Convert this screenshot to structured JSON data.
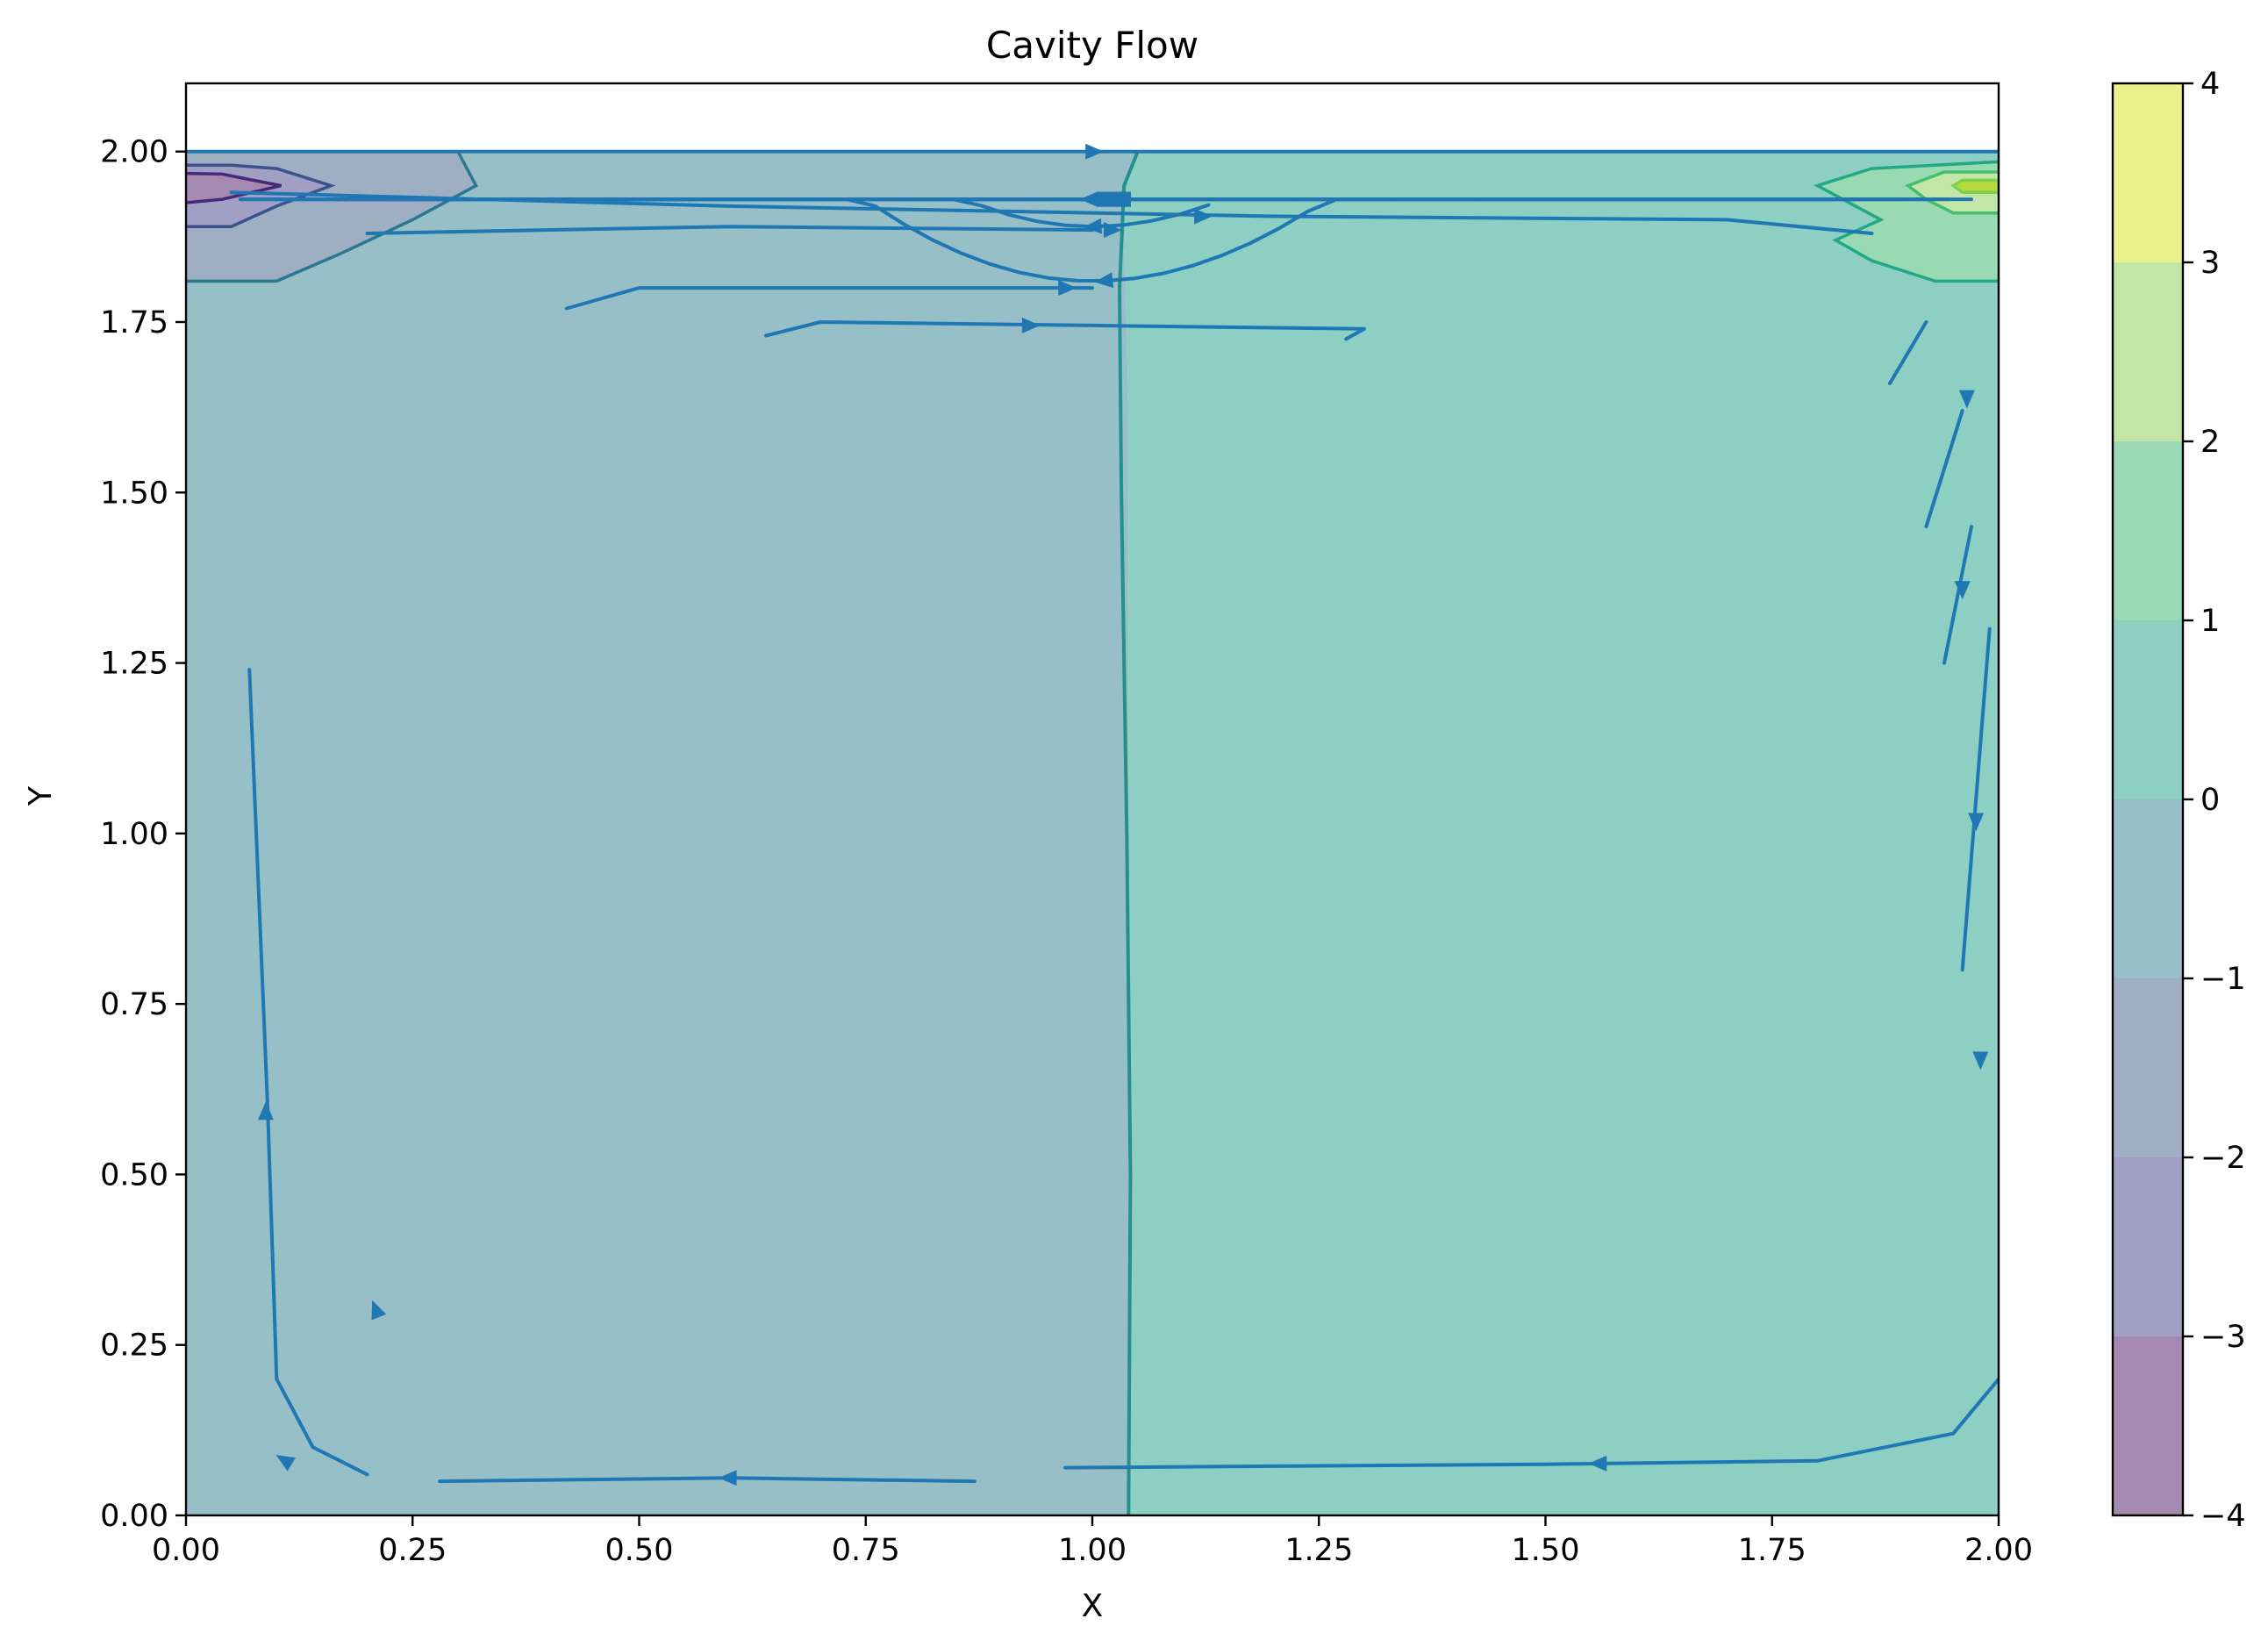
{
  "chart_data": {
    "type": "streamplot-contourf",
    "title": "Cavity Flow",
    "xlabel": "X",
    "ylabel": "Y",
    "xlim": [
      0,
      2
    ],
    "ylim": [
      0,
      2.1
    ],
    "x_ticks": [
      "0.00",
      "0.25",
      "0.50",
      "0.75",
      "1.00",
      "1.25",
      "1.50",
      "1.75",
      "2.00"
    ],
    "y_ticks": [
      "0.00",
      "0.25",
      "0.50",
      "0.75",
      "1.00",
      "1.25",
      "1.50",
      "1.75",
      "2.00"
    ],
    "colorbar": {
      "ticks": [
        "−4",
        "−3",
        "−2",
        "−1",
        "0",
        "1",
        "2",
        "3",
        "4"
      ],
      "range": [
        -4,
        4
      ],
      "levels": [
        -4,
        -3,
        -2,
        -1,
        0,
        1,
        2,
        3,
        4
      ],
      "colormap": "viridis",
      "band_colors": [
        "#a689b1",
        "#a19fc3",
        "#9eaec3",
        "#97bfc7",
        "#8ecfc3",
        "#9adab3",
        "#c3e6a6",
        "#ecf08c"
      ]
    },
    "stream_color": "#1f77b4",
    "contour_line_color": "#23908c",
    "regions": [
      {
        "name": "left-half",
        "x": [
          0,
          1.04
        ],
        "level_band": [
          -1,
          0
        ]
      },
      {
        "name": "right-half",
        "x": [
          1.04,
          2
        ],
        "level_band": [
          0,
          1
        ]
      },
      {
        "name": "top-left-corner-low",
        "x": [
          0,
          0.32
        ],
        "y": [
          1.8,
          2.0
        ],
        "min_level": -3
      },
      {
        "name": "top-right-corner-high",
        "x": [
          1.85,
          2.0
        ],
        "y": [
          1.8,
          2.0
        ],
        "max_level": 2
      }
    ],
    "streamlines": "clockwise recirculating vortex centred near (1.0, 1.75), lid moving in +x direction at y = 2.00"
  }
}
